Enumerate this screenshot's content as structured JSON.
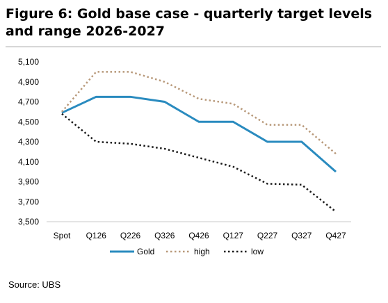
{
  "figure": {
    "title": "Figure 6: Gold base case - quarterly target levels and range 2026-2027",
    "source": "Source: UBS"
  },
  "chart_data": {
    "type": "line",
    "title": "Figure 6: Gold base case - quarterly target levels and range 2026-2027",
    "xlabel": "",
    "ylabel": "",
    "categories": [
      "Spot",
      "Q126",
      "Q226",
      "Q326",
      "Q426",
      "Q127",
      "Q227",
      "Q327",
      "Q427"
    ],
    "ylim": [
      3500,
      5100
    ],
    "yticks": [
      3500,
      3700,
      3900,
      4100,
      4300,
      4500,
      4700,
      4900,
      5100
    ],
    "ytick_labels": [
      "3,500",
      "3,700",
      "3,900",
      "4,100",
      "4,300",
      "4,500",
      "4,700",
      "4,900",
      "5,100"
    ],
    "grid": false,
    "legend_position": "bottom",
    "series": [
      {
        "name": "Gold",
        "style": "solid",
        "color": "#2a8bbf",
        "values": [
          4590,
          4750,
          4750,
          4700,
          4500,
          4500,
          4300,
          4300,
          4000
        ]
      },
      {
        "name": "high",
        "style": "dotted",
        "color": "#b8997a",
        "values": [
          4600,
          5000,
          5000,
          4900,
          4730,
          4680,
          4470,
          4470,
          4180
        ]
      },
      {
        "name": "low",
        "style": "dotted",
        "color": "#1a1a1a",
        "values": [
          4580,
          4300,
          4280,
          4230,
          4140,
          4050,
          3880,
          3870,
          3600
        ]
      }
    ]
  }
}
